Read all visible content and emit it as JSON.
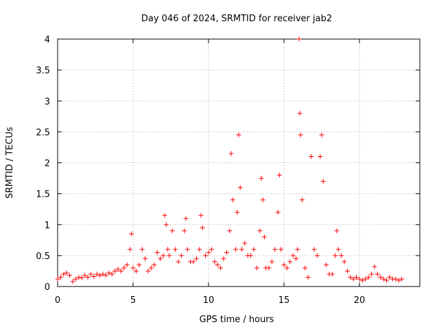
{
  "chart_data": {
    "type": "scatter",
    "title": "Day 046 of 2024, SRMTID for receiver jab2",
    "xlabel": "GPS time / hours",
    "ylabel": "SRMTID / TECUs",
    "xlim": [
      0,
      24
    ],
    "ylim": [
      0,
      4
    ],
    "xticks": [
      0,
      5,
      10,
      15,
      20
    ],
    "yticks": [
      0,
      0.5,
      1,
      1.5,
      2,
      2.5,
      3,
      3.5,
      4
    ],
    "ytick_labels": [
      "0",
      "0.5",
      "1",
      "1.5",
      "2",
      "2.5",
      "3",
      "3.5",
      "4"
    ],
    "grid": true,
    "marker": "+",
    "color": "#ff0000",
    "series": [
      {
        "name": "SRMTID",
        "x": [
          0.0,
          0.2,
          0.4,
          0.6,
          0.8,
          1.0,
          1.2,
          1.4,
          1.6,
          1.8,
          2.0,
          2.2,
          2.4,
          2.6,
          2.8,
          3.0,
          3.2,
          3.4,
          3.6,
          3.8,
          4.0,
          4.2,
          4.4,
          4.6,
          4.8,
          4.9,
          5.0,
          5.2,
          5.4,
          5.6,
          5.8,
          6.0,
          6.2,
          6.4,
          6.6,
          6.8,
          7.0,
          7.1,
          7.2,
          7.3,
          7.4,
          7.6,
          7.8,
          8.0,
          8.2,
          8.4,
          8.5,
          8.6,
          8.8,
          9.0,
          9.2,
          9.4,
          9.5,
          9.6,
          9.8,
          10.0,
          10.2,
          10.4,
          10.6,
          10.8,
          11.0,
          11.2,
          11.4,
          11.5,
          11.6,
          11.8,
          11.9,
          12.0,
          12.1,
          12.2,
          12.4,
          12.6,
          12.8,
          13.0,
          13.2,
          13.4,
          13.5,
          13.6,
          13.7,
          13.8,
          14.0,
          14.2,
          14.4,
          14.6,
          14.7,
          14.8,
          15.0,
          15.2,
          15.4,
          15.6,
          15.8,
          15.9,
          16.0,
          16.05,
          16.1,
          16.2,
          16.4,
          16.6,
          16.8,
          17.0,
          17.2,
          17.4,
          17.5,
          17.6,
          17.8,
          18.0,
          18.2,
          18.4,
          18.5,
          18.6,
          18.8,
          19.0,
          19.2,
          19.4,
          19.6,
          19.8,
          20.0,
          20.2,
          20.4,
          20.6,
          20.8,
          21.0,
          21.2,
          21.4,
          21.6,
          21.8,
          22.0,
          22.2,
          22.4,
          22.6,
          22.8
        ],
        "y": [
          0.12,
          0.15,
          0.2,
          0.22,
          0.18,
          0.08,
          0.12,
          0.15,
          0.14,
          0.18,
          0.15,
          0.2,
          0.16,
          0.2,
          0.18,
          0.2,
          0.18,
          0.22,
          0.2,
          0.25,
          0.28,
          0.25,
          0.3,
          0.35,
          0.6,
          0.85,
          0.3,
          0.25,
          0.35,
          0.6,
          0.45,
          0.25,
          0.3,
          0.35,
          0.55,
          0.45,
          0.5,
          1.15,
          1.0,
          0.6,
          0.5,
          0.9,
          0.6,
          0.4,
          0.5,
          0.9,
          1.1,
          0.6,
          0.4,
          0.4,
          0.45,
          0.6,
          1.15,
          0.95,
          0.5,
          0.55,
          0.6,
          0.4,
          0.35,
          0.3,
          0.45,
          0.55,
          0.9,
          2.15,
          1.4,
          0.6,
          1.2,
          2.45,
          1.6,
          0.6,
          0.7,
          0.5,
          0.5,
          0.6,
          0.3,
          0.9,
          1.75,
          1.4,
          0.8,
          0.3,
          0.3,
          0.4,
          0.6,
          1.2,
          1.8,
          0.6,
          0.35,
          0.3,
          0.4,
          0.5,
          0.45,
          0.6,
          4.0,
          2.8,
          2.45,
          1.4,
          0.3,
          0.15,
          2.1,
          0.6,
          0.5,
          2.1,
          2.45,
          1.7,
          0.35,
          0.2,
          0.2,
          0.5,
          0.9,
          0.6,
          0.5,
          0.4,
          0.25,
          0.15,
          0.12,
          0.15,
          0.12,
          0.1,
          0.12,
          0.15,
          0.2,
          0.32,
          0.2,
          0.15,
          0.12,
          0.1,
          0.15,
          0.12,
          0.12,
          0.1,
          0.12
        ]
      }
    ]
  }
}
